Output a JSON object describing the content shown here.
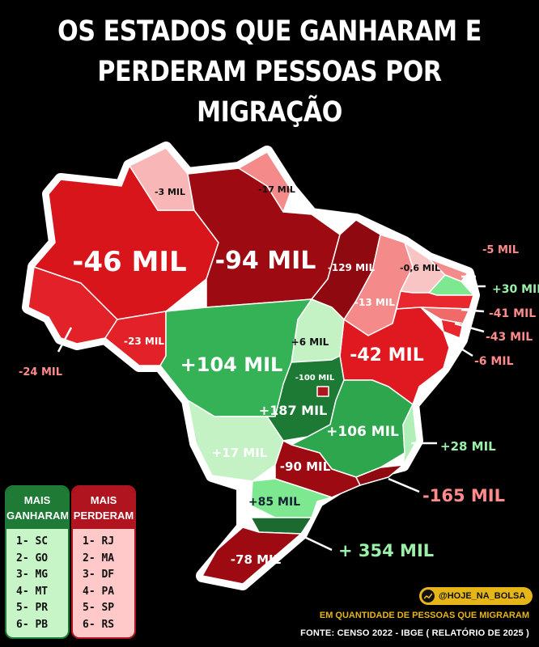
{
  "title_line1": "OS ESTADOS QUE GANHARAM E",
  "title_line2": "PERDERAM PESSOAS POR MIGRAÇÃO",
  "colors": {
    "loss_strong": "#d9151c",
    "loss_dark": "#9e0a12",
    "loss_light": "#f48a8a",
    "loss_pale": "#f8b6b6",
    "gain_strong": "#35b256",
    "gain_dark": "#1d7a35",
    "gain_light": "#c5f2c5",
    "background": "#000000",
    "badge": "#e6b619"
  },
  "states": [
    {
      "code": "AM",
      "label": "-46 MIL"
    },
    {
      "code": "PA",
      "label": "-94 MIL"
    },
    {
      "code": "RR",
      "label": "-3 MIL"
    },
    {
      "code": "AP",
      "label": "-17 MIL"
    },
    {
      "code": "MA",
      "label": "-129 MIL"
    },
    {
      "code": "PI",
      "label": "-13 MIL"
    },
    {
      "code": "CE",
      "label": "-0,6 MIL"
    },
    {
      "code": "RN",
      "label": "-5 MIL"
    },
    {
      "code": "PB",
      "label": "+30 MIL"
    },
    {
      "code": "PE",
      "label": "-41 MIL"
    },
    {
      "code": "AL",
      "label": "-43 MIL"
    },
    {
      "code": "SE",
      "label": "-6 MIL"
    },
    {
      "code": "BA",
      "label": "-42 MIL"
    },
    {
      "code": "AC",
      "label": "-24 MIL"
    },
    {
      "code": "RO",
      "label": "-23 MIL"
    },
    {
      "code": "MT",
      "label": "+104 MIL"
    },
    {
      "code": "TO",
      "label": "+6 MIL"
    },
    {
      "code": "DF",
      "label": "-100 MIL"
    },
    {
      "code": "GO",
      "label": "+187 MIL"
    },
    {
      "code": "MG",
      "label": "+106 MIL"
    },
    {
      "code": "ES",
      "label": "+28 MIL"
    },
    {
      "code": "MS",
      "label": "+17 MIL"
    },
    {
      "code": "SP",
      "label": "-90 MIL"
    },
    {
      "code": "RJ",
      "label": "-165 MIL"
    },
    {
      "code": "PR",
      "label": "+85 MIL"
    },
    {
      "code": "SC",
      "label": "+ 354 MIL"
    },
    {
      "code": "RS",
      "label": "-78 MIL"
    }
  ],
  "legend_gain": {
    "header_line1": "MAIS",
    "header_line2": "GANHARAM",
    "items": [
      "1- SC",
      "2- GO",
      "3- MG",
      "4- MT",
      "5- PR",
      "6- PB"
    ]
  },
  "legend_loss": {
    "header_line1": "MAIS",
    "header_line2": "PERDERAM",
    "items": [
      "1- RJ",
      "2- MA",
      "3- DF",
      "4- PA",
      "5- SP",
      "6- RS"
    ]
  },
  "badge": "@HOJE_NA_BOLSA",
  "note": "EM QUANTIDADE DE PESSOAS QUE MIGRARAM",
  "source": "FONTE:  CENSO 2022 - IBGE ( RELATÓRIO DE 2025 )"
}
